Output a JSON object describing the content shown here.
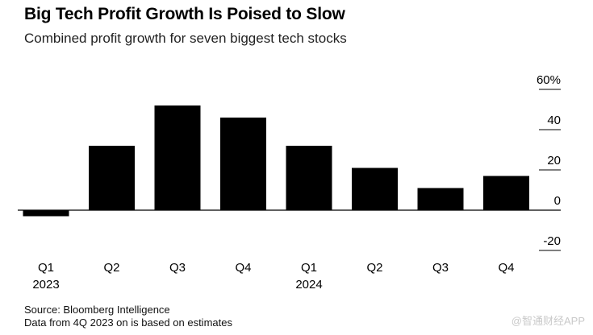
{
  "header": {
    "title": "Big Tech Profit Growth Is Poised to Slow",
    "subtitle": "Combined profit growth for seven biggest tech stocks"
  },
  "footer": {
    "source": "Source: Bloomberg Intelligence",
    "note": "Data from 4Q 2023 on is based on estimates"
  },
  "watermark": "@智通财经APP",
  "colors": {
    "bar": "#000000",
    "grid": "#000000",
    "text": "#000000"
  },
  "chart_data": {
    "type": "bar",
    "title": "Big Tech Profit Growth Is Poised to Slow",
    "subtitle": "Combined profit growth for seven biggest tech stocks",
    "categories": [
      "Q1",
      "Q2",
      "Q3",
      "Q4",
      "Q1",
      "Q2",
      "Q3",
      "Q4"
    ],
    "year_labels": [
      "2023",
      "",
      "",
      "",
      "2024",
      "",
      "",
      ""
    ],
    "values": [
      -3,
      32,
      52,
      46,
      32,
      21,
      11,
      17
    ],
    "unit": "%",
    "y_ticks": [
      60,
      40,
      20,
      0,
      -20
    ],
    "y_tick_labels": [
      "60%",
      "40",
      "20",
      "0",
      "-20"
    ],
    "ylim": [
      -20,
      60
    ],
    "y_axis_side": "right",
    "xlabel": "",
    "ylabel": ""
  }
}
